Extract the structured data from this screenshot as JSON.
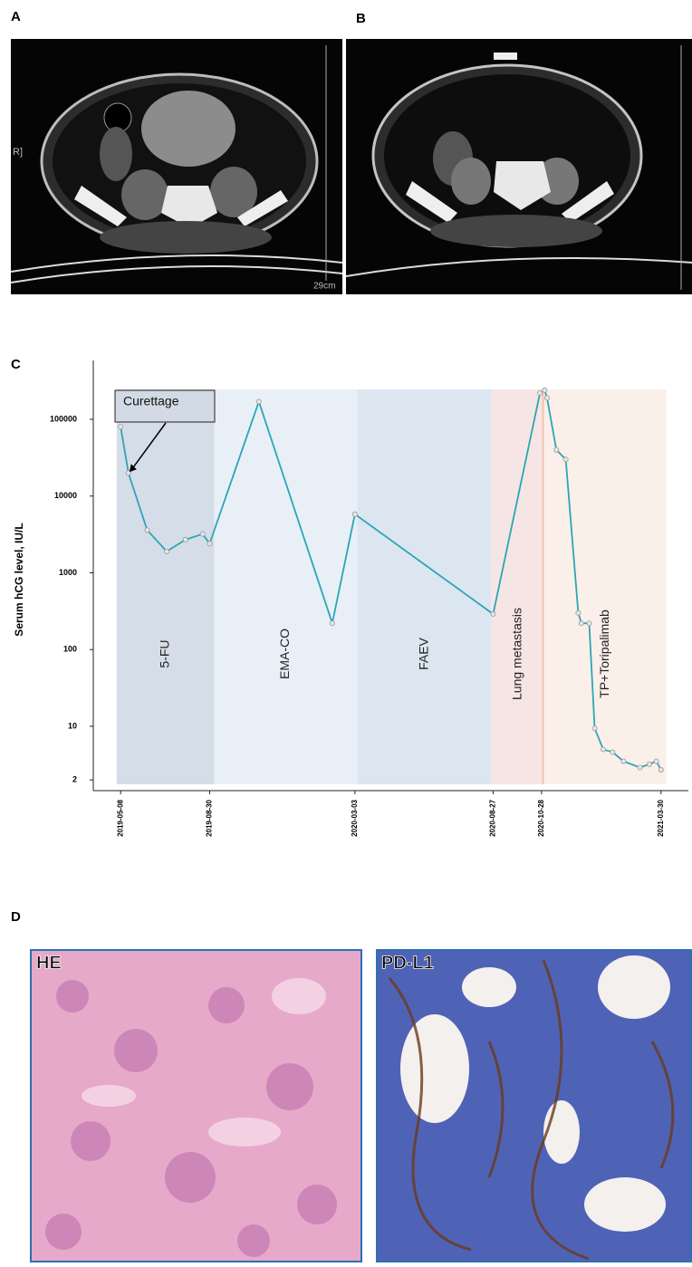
{
  "panels": {
    "a": {
      "label": "A",
      "side_text": "R]",
      "scale_text": "29cm"
    },
    "b": {
      "label": "B"
    },
    "c": {
      "label": "C"
    },
    "d": {
      "label": "D",
      "images": [
        "HE",
        "PD-L1"
      ]
    }
  },
  "chart_data": {
    "type": "line",
    "y_label": "Serum hCG level, IU/L",
    "yscale": "log",
    "color": "#2ba6b5",
    "x": [
      "2019-05-08",
      "2019-05-18",
      "2019-06-11",
      "2019-07-06",
      "2019-07-30",
      "2019-08-21",
      "2019-08-30",
      "2019-11-01",
      "2020-02-03",
      "2020-03-03",
      "2020-08-27",
      "2020-10-26",
      "2020-11-01",
      "2020-11-04",
      "2020-11-16",
      "2020-11-28",
      "2020-12-14",
      "2020-12-18",
      "2020-12-28",
      "2021-01-04",
      "2021-01-15",
      "2021-01-27",
      "2021-02-10",
      "2021-03-03",
      "2021-03-15",
      "2021-03-24",
      "2021-03-30"
    ],
    "values": [
      80000,
      20000,
      3600,
      1900,
      2700,
      3200,
      2400,
      170000,
      220,
      5800,
      290,
      220000,
      240000,
      190000,
      40000,
      30000,
      300,
      220,
      220,
      9.4,
      5.0,
      4.6,
      3.5,
      2.9,
      3.2,
      3.5,
      2.7
    ],
    "xlim": [
      "2019-04-03",
      "2021-05-04"
    ],
    "xticks": [
      "2019-05-08",
      "2019-08-30",
      "2020-03-03",
      "2020-08-27",
      "2020-10-28",
      "2021-03-30"
    ],
    "ylim": [
      1.45,
      585000
    ],
    "yticks": [
      2,
      10,
      100,
      1000,
      10000,
      100000
    ],
    "regions": [
      {
        "label": "5-FU",
        "start": "2019-05-03",
        "end": "2019-09-05",
        "color": "#d5dde8"
      },
      {
        "label": "EMA-CO",
        "start": "2019-09-05",
        "end": "2020-03-06",
        "color": "#e8eff6"
      },
      {
        "label": "FAEV",
        "start": "2020-03-06",
        "end": "2020-08-25",
        "color": "#dce6f1"
      },
      {
        "label": "Lung metastasis",
        "start": "2020-08-25",
        "end": "2020-10-31",
        "color": "#f6e5e5",
        "edge_color": "#f3c2ae"
      },
      {
        "label": "TP+Toripalimab",
        "start": "2020-10-31",
        "end": "2021-04-06",
        "color": "#fbefe9"
      }
    ],
    "annotations": [
      {
        "text": "Curettage",
        "x": "2019-05-18",
        "y": 20000
      }
    ]
  }
}
